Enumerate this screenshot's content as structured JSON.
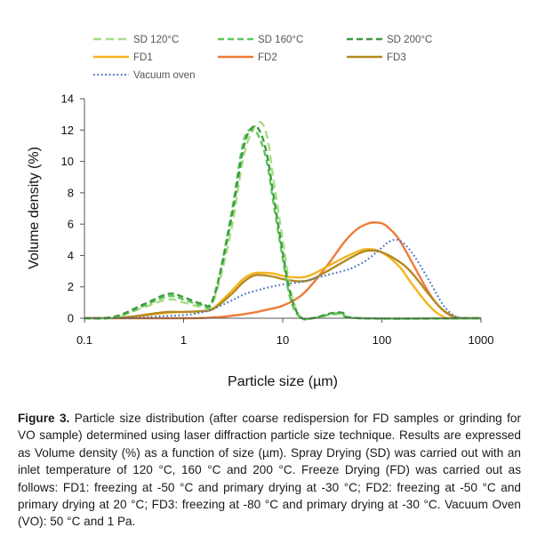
{
  "chart_data": {
    "type": "line",
    "xlabel": "Particle size (µm)",
    "ylabel": "Volume density (%)",
    "x_scale": "log",
    "xlim": [
      0.1,
      1000
    ],
    "ylim": [
      0,
      14
    ],
    "x_ticks": [
      "0.1",
      "1",
      "10",
      "100",
      "1000"
    ],
    "y_ticks": [
      "0",
      "2",
      "4",
      "6",
      "8",
      "10",
      "12",
      "14"
    ],
    "grid": false,
    "legend_position": "top",
    "series": [
      {
        "name": "SD 120°C",
        "color": "#a8dc84",
        "dash": "long-dash",
        "x": [
          0.1,
          0.2,
          0.4,
          0.7,
          1.0,
          1.5,
          2.0,
          3.0,
          4.0,
          5.0,
          6.0,
          7.0,
          8.0,
          10.0,
          12.0,
          15.0,
          20.0,
          30.0,
          40.0,
          60.0,
          1000.0
        ],
        "y": [
          0,
          0.05,
          0.7,
          1.2,
          1.0,
          0.75,
          1.1,
          5.5,
          10.2,
          12.0,
          12.5,
          11.5,
          9.0,
          5.0,
          1.8,
          0.1,
          0,
          0.2,
          0.25,
          0,
          0
        ]
      },
      {
        "name": "SD 160°C",
        "color": "#5cc85c",
        "dash": "dash",
        "x": [
          0.1,
          0.2,
          0.4,
          0.7,
          1.0,
          1.5,
          2.0,
          3.0,
          4.0,
          5.0,
          6.0,
          7.0,
          8.0,
          10.0,
          12.0,
          15.0,
          20.0,
          30.0,
          40.0,
          60.0,
          1000.0
        ],
        "y": [
          0,
          0.05,
          0.8,
          1.4,
          1.2,
          0.85,
          1.2,
          6.5,
          11.2,
          12.0,
          11.3,
          9.8,
          7.5,
          3.8,
          1.2,
          0.05,
          0,
          0.25,
          0.3,
          0,
          0
        ]
      },
      {
        "name": "SD 200°C",
        "color": "#3e9a3e",
        "dash": "dash",
        "x": [
          0.1,
          0.2,
          0.4,
          0.7,
          1.0,
          1.5,
          2.0,
          3.0,
          4.0,
          5.0,
          6.0,
          7.0,
          8.0,
          10.0,
          12.0,
          15.0,
          20.0,
          30.0,
          40.0,
          60.0,
          1000.0
        ],
        "y": [
          0,
          0.1,
          0.9,
          1.55,
          1.35,
          0.95,
          1.3,
          6.2,
          10.8,
          12.2,
          11.8,
          10.3,
          8.0,
          4.2,
          1.5,
          0.1,
          0,
          0.3,
          0.35,
          0,
          0
        ]
      },
      {
        "name": "FD1",
        "color": "#f5b41e",
        "dash": "solid",
        "x": [
          0.1,
          0.2,
          0.3,
          0.5,
          0.7,
          1.0,
          1.5,
          2.0,
          3.0,
          4.0,
          5.0,
          6.0,
          8.0,
          10.0,
          15.0,
          20.0,
          30.0,
          50.0,
          70.0,
          100.0,
          150.0,
          200.0,
          300.0,
          400.0,
          500.0,
          1000.0
        ],
        "y": [
          0,
          0.02,
          0.08,
          0.25,
          0.35,
          0.4,
          0.45,
          0.65,
          1.7,
          2.5,
          2.85,
          2.9,
          2.85,
          2.7,
          2.6,
          2.8,
          3.4,
          4.1,
          4.4,
          4.2,
          3.3,
          2.2,
          0.8,
          0.15,
          0,
          0
        ]
      },
      {
        "name": "FD2",
        "color": "#ef7b3a",
        "dash": "solid",
        "x": [
          0.1,
          1.0,
          2.0,
          3.0,
          5.0,
          7.0,
          10.0,
          15.0,
          20.0,
          30.0,
          40.0,
          50.0,
          60.0,
          70.0,
          80.0,
          100.0,
          120.0,
          150.0,
          200.0,
          300.0,
          400.0,
          500.0,
          600.0,
          700.0,
          1000.0
        ],
        "y": [
          0,
          0,
          0.05,
          0.15,
          0.35,
          0.55,
          0.8,
          1.4,
          2.2,
          3.6,
          4.7,
          5.4,
          5.8,
          6.0,
          6.1,
          6.05,
          5.7,
          5.0,
          3.6,
          1.6,
          0.6,
          0.15,
          0.02,
          0,
          0
        ]
      },
      {
        "name": "FD3",
        "color": "#b48a22",
        "dash": "solid",
        "x": [
          0.1,
          0.2,
          0.3,
          0.5,
          0.7,
          1.0,
          1.5,
          2.0,
          3.0,
          4.0,
          5.0,
          6.0,
          8.0,
          10.0,
          15.0,
          20.0,
          30.0,
          50.0,
          70.0,
          100.0,
          150.0,
          200.0,
          300.0,
          400.0,
          500.0,
          600.0,
          1000.0
        ],
        "y": [
          0,
          0.02,
          0.1,
          0.3,
          0.4,
          0.4,
          0.45,
          0.6,
          1.5,
          2.3,
          2.7,
          2.75,
          2.65,
          2.5,
          2.35,
          2.5,
          3.1,
          3.9,
          4.3,
          4.2,
          3.6,
          2.9,
          1.5,
          0.6,
          0.2,
          0.03,
          0
        ]
      },
      {
        "name": "Vacuum oven",
        "color": "#4a74c4",
        "dash": "dot",
        "x": [
          0.1,
          0.3,
          0.5,
          0.7,
          1.0,
          1.5,
          2.0,
          3.0,
          4.0,
          5.0,
          7.0,
          10.0,
          15.0,
          20.0,
          30.0,
          40.0,
          50.0,
          70.0,
          100.0,
          120.0,
          150.0,
          200.0,
          300.0,
          400.0,
          500.0,
          600.0,
          700.0,
          1000.0
        ],
        "y": [
          0,
          0.02,
          0.1,
          0.15,
          0.2,
          0.35,
          0.6,
          1.1,
          1.5,
          1.7,
          1.95,
          2.15,
          2.3,
          2.5,
          2.8,
          3.0,
          3.2,
          3.7,
          4.5,
          4.9,
          4.95,
          4.2,
          2.4,
          1.0,
          0.3,
          0.05,
          0,
          0
        ]
      }
    ]
  },
  "caption": {
    "label": "Figure 3.",
    "text": " Particle size distribution (after coarse redispersion for FD samples or grinding for VO sample) determined using laser diffraction particle size technique. Results are expressed as Volume density (%) as a function of size (µm). Spray Drying (SD) was carried out with an inlet temperature of 120 °C, 160 °C and 200 °C. Freeze Drying (FD) was carried out as follows: FD1: freezing at -50 °C and primary drying at -30 °C; FD2: freezing at -50 °C and primary drying at 20 °C; FD3: freezing at -80 °C and primary drying at -30 °C. Vacuum Oven (VO): 50 °C and 1 Pa."
  }
}
